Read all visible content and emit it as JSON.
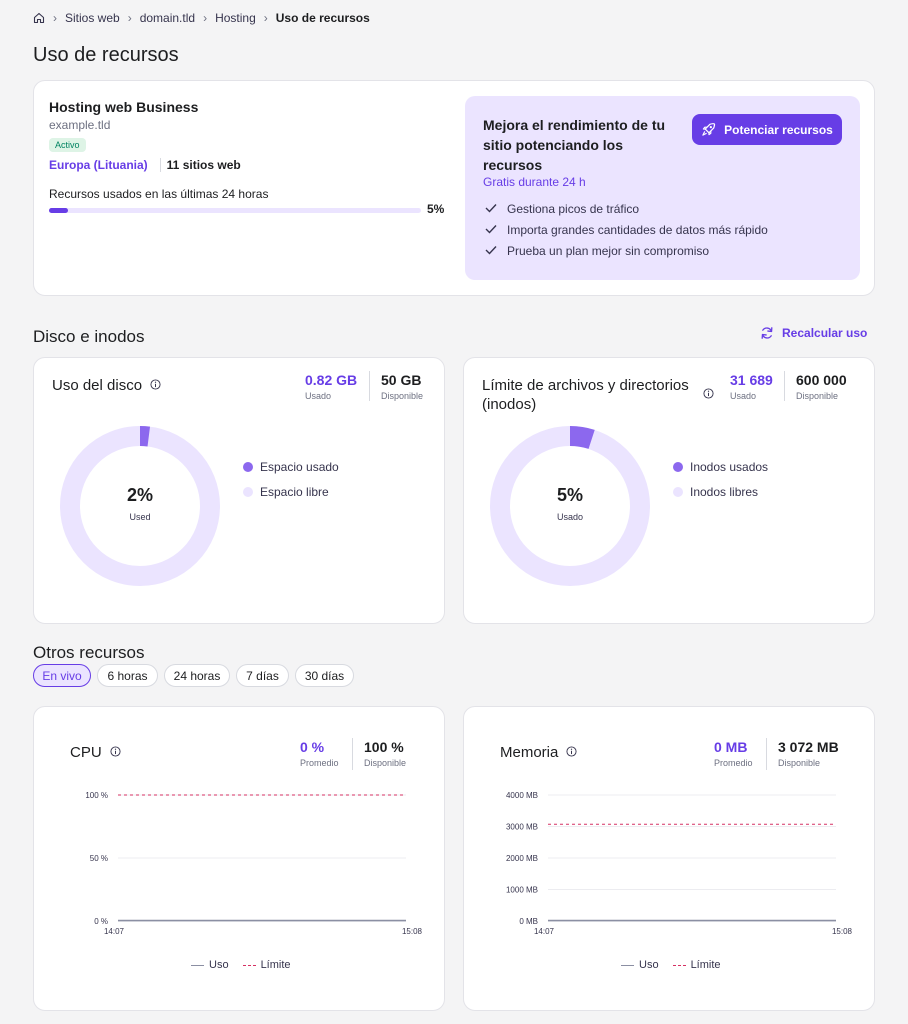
{
  "breadcrumb": {
    "items": [
      "Sitios web",
      "domain.tld",
      "Hosting"
    ],
    "current": "Uso de recursos"
  },
  "page_title": "Uso de recursos",
  "plan": {
    "name": "Hosting web Business",
    "domain": "example.tld",
    "status": "Activo",
    "location": "Europa (Lituania)",
    "sites": "11 sitios web",
    "usage_label": "Recursos usados en las últimas 24 horas",
    "usage_percent_text": "5%",
    "usage_percent": 5
  },
  "promo": {
    "title": "Mejora el rendimiento de tu sitio potenciando los recursos",
    "subtitle": "Gratis durante 24 h",
    "button": "Potenciar recursos",
    "benefits": [
      "Gestiona picos de tráfico",
      "Importa grandes cantidades de datos más rápido",
      "Prueba un plan mejor sin compromiso"
    ]
  },
  "disk_section": {
    "title": "Disco e inodos",
    "recalc": "Recalcular uso"
  },
  "disk": {
    "title": "Uso del disco",
    "used_value": "0.82 GB",
    "used_label": "Usado",
    "available_value": "50 GB",
    "available_label": "Disponible",
    "center_value": "2%",
    "center_label": "Used",
    "percent": 2,
    "legend": [
      "Espacio usado",
      "Espacio libre"
    ]
  },
  "inodes": {
    "title": "Límite de archivos y directorios (inodos)",
    "used_value": "31 689",
    "used_label": "Usado",
    "available_value": "600 000",
    "available_label": "Disponible",
    "center_value": "5%",
    "center_label": "Usado",
    "percent": 5,
    "legend": [
      "Inodos usados",
      "Inodos libres"
    ]
  },
  "other": {
    "title": "Otros recursos",
    "tabs": [
      "En vivo",
      "6 horas",
      "24 horas",
      "7 días",
      "30 días"
    ],
    "active_tab": 0
  },
  "cpu": {
    "title": "CPU",
    "avg_value": "0 %",
    "avg_label": "Promedio",
    "avail_value": "100 %",
    "avail_label": "Disponible",
    "y_ticks": [
      "100 %",
      "50 %",
      "0 %"
    ],
    "x_ticks": [
      "14:07",
      "15:08"
    ],
    "legend_use": "Uso",
    "legend_limit": "Límite",
    "limit": 100,
    "use": 0
  },
  "memory": {
    "title": "Memoria",
    "avg_value": "0 MB",
    "avg_label": "Promedio",
    "avail_value": "3 072 MB",
    "avail_label": "Disponible",
    "y_ticks": [
      "4000 MB",
      "3000 MB",
      "2000 MB",
      "1000 MB",
      "0 MB"
    ],
    "x_ticks": [
      "14:07",
      "15:08"
    ],
    "legend_use": "Uso",
    "legend_limit": "Límite",
    "limit": 3072,
    "use": 0
  },
  "colors": {
    "accent": "#673de6",
    "accent_light": "#ebe4ff",
    "success_bg": "#def4e6",
    "success_text": "#008361",
    "limit_line": "#d63163"
  }
}
